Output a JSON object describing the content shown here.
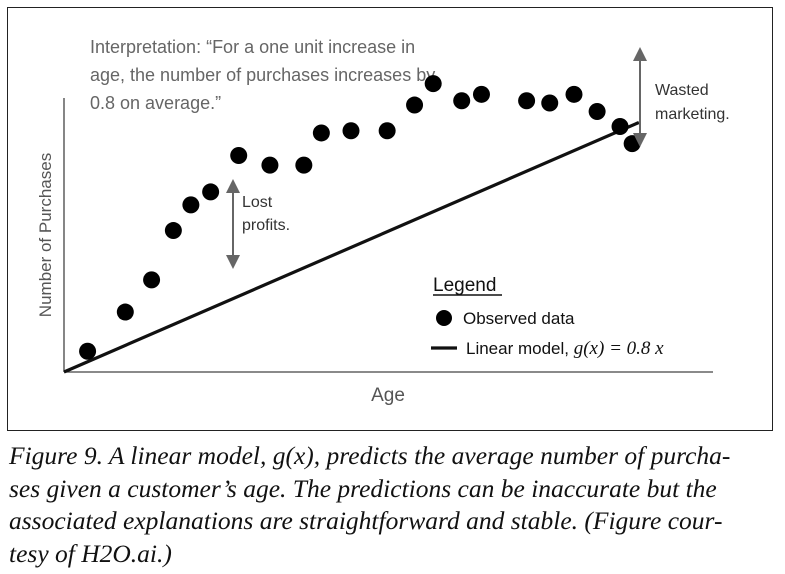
{
  "chart_data": {
    "type": "scatter",
    "title": "",
    "xlabel": "Age",
    "ylabel": "Number of Purchases",
    "interpretation_lines": [
      "Interpretation: “For a one unit increase in",
      "age, the number of purchases increases by",
      "0.8 on average.”"
    ],
    "annotations": {
      "lost_profits": [
        "Lost",
        "profits."
      ],
      "wasted_marketing": [
        "Wasted",
        "marketing."
      ]
    },
    "legend": {
      "title": "Legend",
      "observed_label": "Observed data",
      "model_label_prefix": "Linear model, ",
      "model_formula": "g(x) = 0.8 x"
    },
    "model": {
      "slope": 0.8,
      "intercept": 0
    },
    "xlim": [
      0,
      28.9
    ],
    "ylim": [
      0,
      26.1
    ],
    "grid": false,
    "series": [
      {
        "name": "Observed data",
        "points": [
          [
            1.05,
            1.7
          ],
          [
            2.73,
            4.92
          ],
          [
            3.9,
            7.56
          ],
          [
            4.87,
            11.61
          ],
          [
            5.65,
            13.72
          ],
          [
            6.53,
            14.78
          ],
          [
            7.78,
            17.77
          ],
          [
            9.17,
            16.98
          ],
          [
            10.68,
            16.98
          ],
          [
            11.46,
            19.62
          ],
          [
            12.78,
            19.8
          ],
          [
            14.39,
            19.8
          ],
          [
            15.61,
            21.91
          ],
          [
            16.44,
            23.67
          ],
          [
            17.71,
            22.26
          ],
          [
            18.59,
            22.79
          ],
          [
            20.6,
            22.26
          ],
          [
            21.63,
            22.08
          ],
          [
            22.71,
            22.79
          ],
          [
            23.74,
            21.38
          ],
          [
            24.76,
            20.15
          ],
          [
            25.3,
            18.74
          ]
        ]
      }
    ]
  },
  "caption_lines": [
    "Figure 9. A linear model, g(x), predicts the average number of purcha-",
    "ses given a customer’s age. The predictions can be inaccurate but the",
    "associated explanations are straightforward and stable. (Figure cour-",
    "tesy of H2O.ai.)"
  ]
}
